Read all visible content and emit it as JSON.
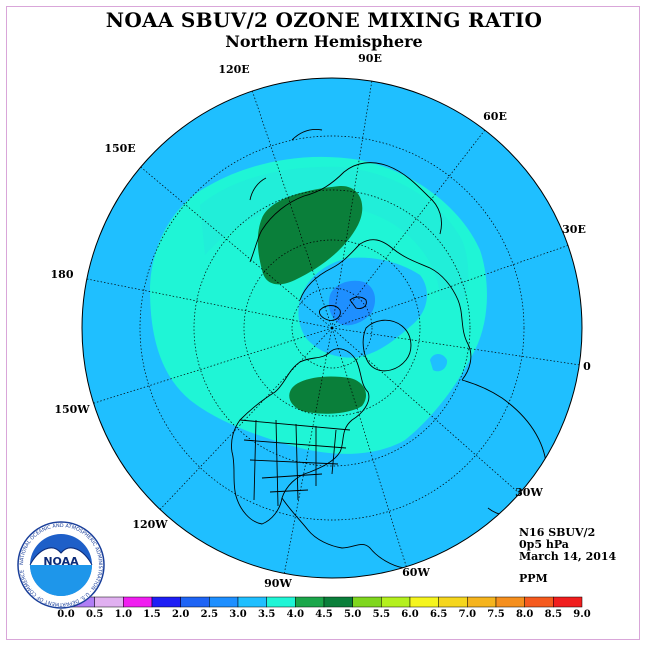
{
  "header": {
    "title": "NOAA SBUV/2 OZONE MIXING RATIO",
    "subtitle": "Northern Hemisphere"
  },
  "map": {
    "projection": "polar-stereographic-north",
    "longitude_labels": [
      "90E",
      "60E",
      "30E",
      "0",
      "30W",
      "60W",
      "90W",
      "120W",
      "150W",
      "180",
      "150E",
      "120E"
    ],
    "ocean_color": "#1fbfff",
    "field_levels": [
      {
        "range": "3.5-4.0",
        "color": "#1ff5d6"
      },
      {
        "range": "4.0-4.5",
        "color": "#1aa64a"
      },
      {
        "range": "4.5-5.0",
        "color": "#0a7f3a"
      },
      {
        "range": "2.5-3.0",
        "color": "#1e8fff"
      }
    ]
  },
  "info": {
    "instrument": "N16 SBUV/2",
    "level": "0p5 hPa",
    "date": "March 14, 2014",
    "units": "PPM"
  },
  "scale": {
    "labels": [
      "0.0",
      "0.5",
      "1.0",
      "1.5",
      "2.0",
      "2.5",
      "3.0",
      "3.5",
      "4.0",
      "4.5",
      "5.0",
      "5.5",
      "6.0",
      "6.5",
      "7.0",
      "7.5",
      "8.0",
      "8.5",
      "9.0"
    ],
    "colors": [
      "#b07ef5",
      "#e0b0f0",
      "#f01ef0",
      "#1e1ef5",
      "#1e64f5",
      "#1e8fff",
      "#1fbfff",
      "#1ff5d6",
      "#1aa64a",
      "#0a7f3a",
      "#7fd61e",
      "#b4f01e",
      "#f5f51e",
      "#f5d61e",
      "#f5b41e",
      "#f58f1e",
      "#f55a1e",
      "#f01e1e",
      "#7f4a2a"
    ]
  },
  "logo": {
    "text": "NOAA",
    "ring_text": "NATIONAL OCEANIC AND ATMOSPHERIC ADMINISTRATION · U.S. DEPARTMENT OF COMMERCE"
  }
}
